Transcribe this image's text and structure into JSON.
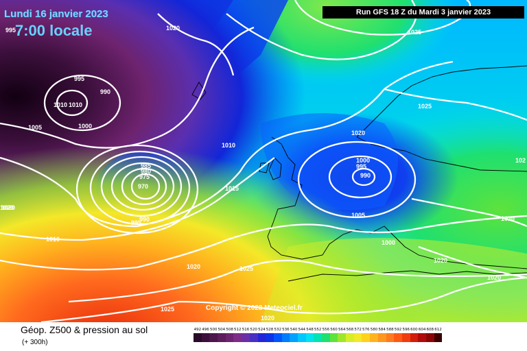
{
  "header": {
    "valid_date": "Lundi 16 janvier 2023",
    "local_time": "7:00 locale",
    "run_info": "Run GFS 18 Z du Mardi 3 janvier 2023"
  },
  "footer": {
    "product": "Géop. Z500 & pression au sol",
    "horizon": "(+ 300h)",
    "copyright": "Copyright © 2023 Meteociel.fr"
  },
  "legend": {
    "ticks": [
      "492",
      "496",
      "500",
      "504",
      "508",
      "512",
      "516",
      "520",
      "524",
      "528",
      "532",
      "536",
      "540",
      "544",
      "548",
      "552",
      "556",
      "560",
      "564",
      "568",
      "572",
      "576",
      "580",
      "584",
      "588",
      "592",
      "596",
      "600",
      "604",
      "608",
      "612"
    ],
    "colors": [
      "#2a0a2a",
      "#3b0f3b",
      "#4c154c",
      "#5c1d5c",
      "#6e236e",
      "#7d2c87",
      "#6a2fa6",
      "#4a2fc4",
      "#2226d8",
      "#0f32e8",
      "#0055ff",
      "#007cff",
      "#00a2ff",
      "#00c8ff",
      "#00e2f0",
      "#00e4b4",
      "#1ee070",
      "#5ee23c",
      "#a0e628",
      "#d6ee28",
      "#f4e828",
      "#ffd21e",
      "#ffb41e",
      "#ff961e",
      "#ff7a1e",
      "#ff5a14",
      "#f03c0f",
      "#d21e0a",
      "#b00a0a",
      "#8c0505",
      "#3c0000"
    ]
  },
  "pressure_labels": [
    {
      "text": "995"
    },
    {
      "text": "1020"
    },
    {
      "text": "1025"
    },
    {
      "text": "995"
    },
    {
      "text": "990"
    },
    {
      "text": "1010"
    },
    {
      "text": "1010"
    },
    {
      "text": "1000"
    },
    {
      "text": "1005"
    },
    {
      "text": "1025"
    },
    {
      "text": "1020"
    },
    {
      "text": "1010"
    },
    {
      "text": "985"
    },
    {
      "text": "980"
    },
    {
      "text": "975"
    },
    {
      "text": "970"
    },
    {
      "text": "995"
    },
    {
      "text": "990"
    },
    {
      "text": "1015"
    },
    {
      "text": "1000"
    },
    {
      "text": "995"
    },
    {
      "text": "990"
    },
    {
      "text": "1005"
    },
    {
      "text": "1000"
    },
    {
      "text": "1020"
    },
    {
      "text": "1020"
    },
    {
      "text": "1010"
    },
    {
      "text": "1020"
    },
    {
      "text": "1025"
    },
    {
      "text": "1020"
    },
    {
      "text": "1020"
    },
    {
      "text": "1025"
    },
    {
      "text": "1020"
    },
    {
      "text": "1020"
    },
    {
      "text": "102"
    }
  ]
}
